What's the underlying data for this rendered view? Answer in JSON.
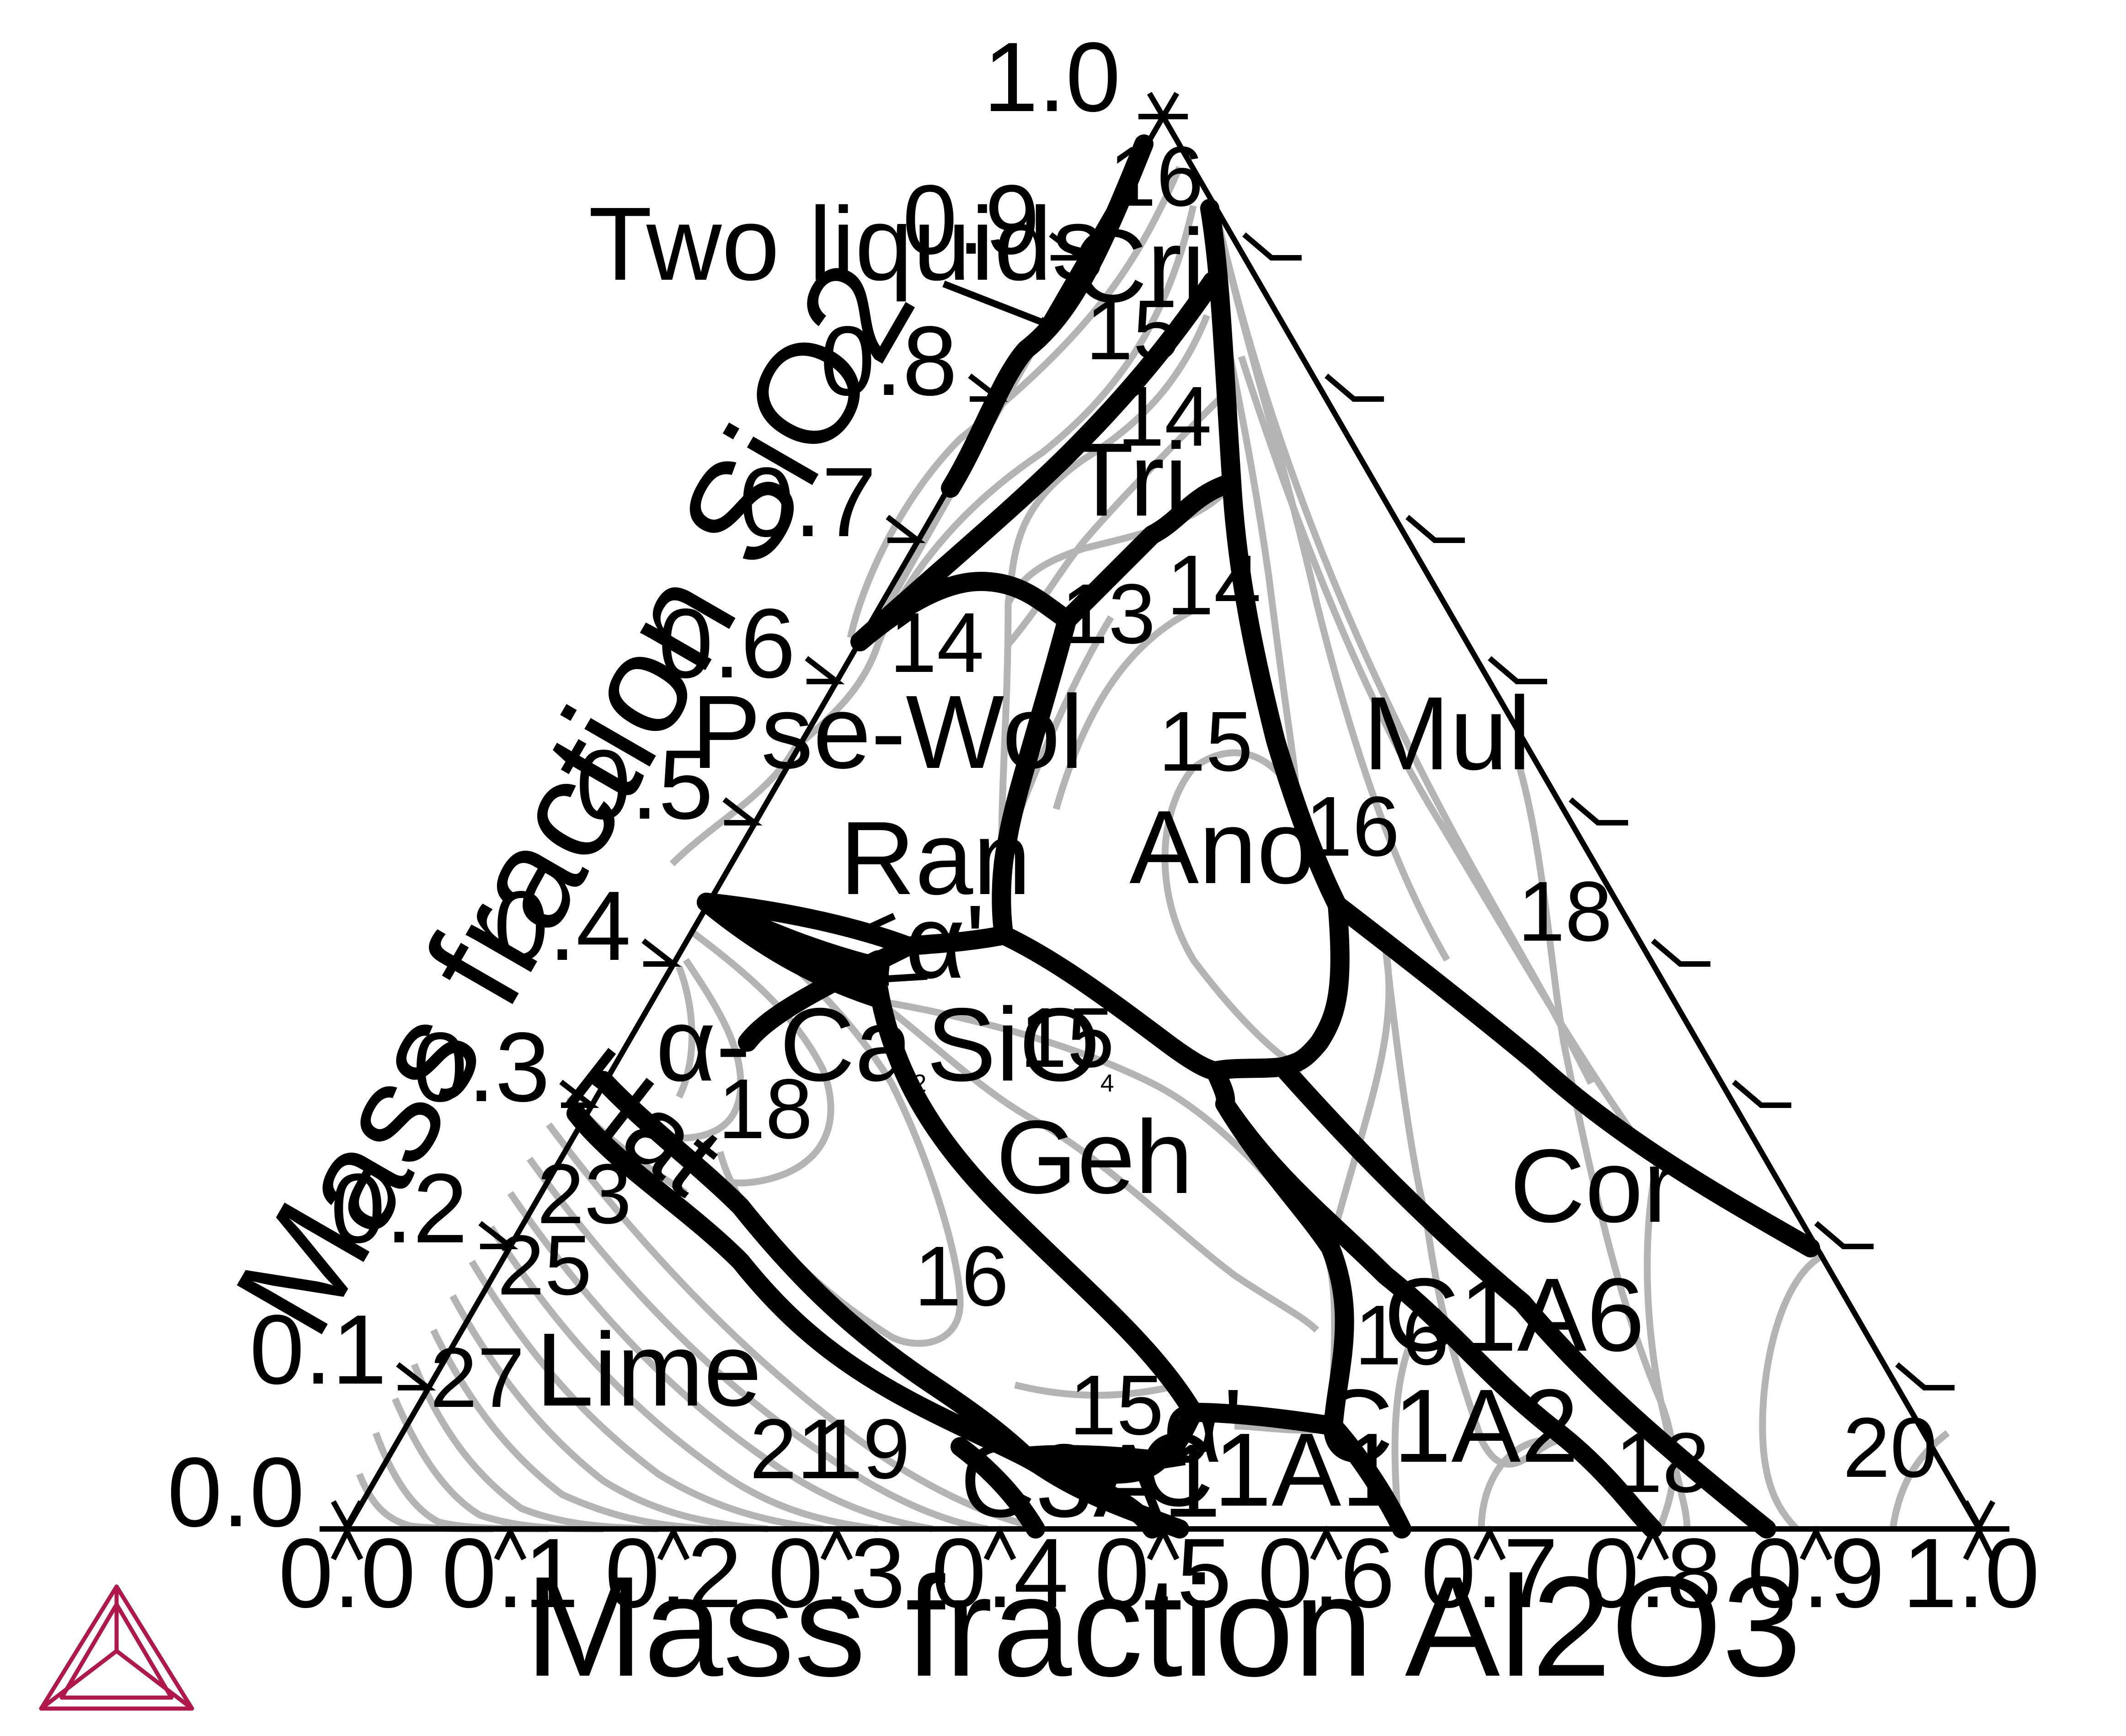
{
  "axes": {
    "x_title": "Mass fraction Al2O3",
    "y_title": "Mass fraction SiO2",
    "x_ticks": [
      "0.0",
      "0.1",
      "0.2",
      "0.3",
      "0.4",
      "0.5",
      "0.6",
      "0.7",
      "0.8",
      "0.9",
      "1.0"
    ],
    "y_ticks": [
      "0.0",
      "0.1",
      "0.2",
      "0.3",
      "0.4",
      "0.5",
      "0.6",
      "0.7",
      "0.8",
      "0.9",
      "1.0"
    ]
  },
  "phase_labels": {
    "two_liquids": "Two liquids",
    "cri": "Cri",
    "tri": "Tri",
    "pse_wol": "Pse-Wol",
    "ran": "Ran",
    "alpha_prime_top": "α'",
    "alpha_ca2sio4_prefix": "α- Ca",
    "alpha_ca2sio4_sub1": "2",
    "alpha_ca2sio4_mid": "SiO",
    "alpha_ca2sio4_sub2": "4",
    "hat": "Hat",
    "lime": "Lime",
    "geh": "Geh",
    "ano": "Ano",
    "mul": "Mul",
    "cor": "Cor",
    "c1a6": "C1A6",
    "c1a2": "C1A2",
    "c1a1": "C1A1",
    "c3a1": "C3A1",
    "alpha_prime_bottom": "α'"
  },
  "isotherm_labels": {
    "l16_top": "16",
    "l15_top": "15",
    "l14_tri": "14",
    "l13": "13",
    "l14_left": "14",
    "l14_ano": "14",
    "l15_ano": "15",
    "l16_ano": "16",
    "l18_mul": "18",
    "l15_geh": "15",
    "l18_ca2": "18",
    "l23": "23",
    "l25": "25",
    "l27": "27",
    "l16_geh": "16",
    "l15_bottom": "15",
    "l21": "21",
    "l19": "19",
    "l16_c1a6": "16",
    "l18_bottom": "18",
    "l20": "20"
  },
  "colors": {
    "boundary": "#000000",
    "isotherm": "#b4b4b4",
    "logo": "#b0174a"
  },
  "logo_icon": "thermo-calc-triangle-logo"
}
